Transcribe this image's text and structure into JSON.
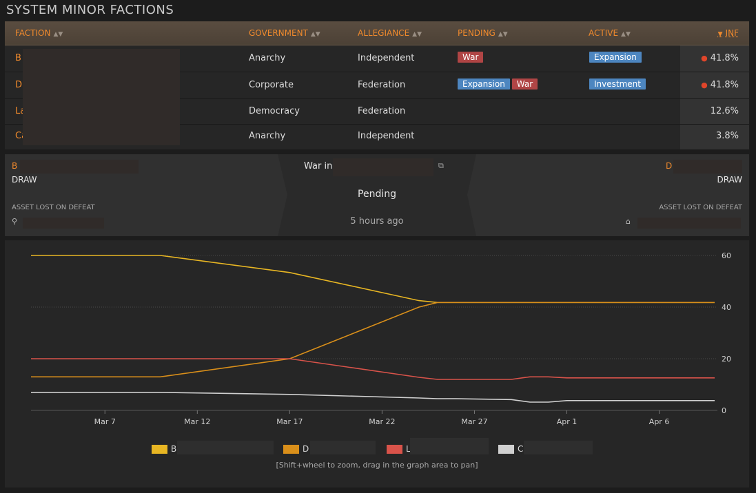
{
  "title": "SYSTEM MINOR FACTIONS",
  "table": {
    "headers": {
      "faction": "FACTION",
      "government": "GOVERNMENT",
      "allegiance": "ALLEGIANCE",
      "pending": "PENDING",
      "active": "ACTIVE",
      "inf": "INF"
    },
    "rows": [
      {
        "name": "B",
        "government": "Anarchy",
        "allegiance": "Independent",
        "pending": [
          "War"
        ],
        "active": [
          "Expansion"
        ],
        "inf": "41.8%"
      },
      {
        "name": "D",
        "government": "Corporate",
        "allegiance": "Federation",
        "pending": [
          "Expansion",
          "War"
        ],
        "active": [
          "Investment"
        ],
        "inf": "41.8%"
      },
      {
        "name": "La",
        "government": "Democracy",
        "allegiance": "Federation",
        "pending": [],
        "active": [],
        "inf": "12.6%"
      },
      {
        "name": "Ca",
        "government": "Anarchy",
        "allegiance": "Independent",
        "pending": [],
        "active": [],
        "inf": "3.8%"
      }
    ]
  },
  "conflict": {
    "left_faction": "B",
    "left_result": "DRAW",
    "left_asset_label": "ASSET LOST ON DEFEAT",
    "war_in": "War in",
    "status": "Pending",
    "time": "5 hours ago",
    "right_faction": "D",
    "right_result": "DRAW",
    "right_asset_label": "ASSET LOST ON DEFEAT"
  },
  "chart_data": {
    "type": "line",
    "x": [
      "Mar 3",
      "Mar 10",
      "Mar 17",
      "Mar 24",
      "Mar 25",
      "Mar 26",
      "Mar 29",
      "Mar 30",
      "Mar 31",
      "Apr 1",
      "Apr 2",
      "Apr 9"
    ],
    "x_ticks": [
      "Mar 7",
      "Mar 12",
      "Mar 17",
      "Mar 22",
      "Mar 27",
      "Apr 1",
      "Apr 6"
    ],
    "y_ticks": [
      "0",
      "20",
      "40",
      "60"
    ],
    "ylim": [
      0,
      60
    ],
    "series": [
      {
        "name": "B",
        "color": "#e8b623",
        "values": [
          60,
          60,
          53.4,
          42.5,
          41.8,
          41.8,
          41.8,
          41.8,
          41.8,
          41.8,
          41.8,
          41.8
        ]
      },
      {
        "name": "D",
        "color": "#d98f1a",
        "values": [
          13,
          13,
          20,
          40,
          41.8,
          41.8,
          41.8,
          41.8,
          41.8,
          41.8,
          41.8,
          41.8
        ]
      },
      {
        "name": "L",
        "color": "#d9534a",
        "values": [
          20,
          20,
          20,
          12.8,
          12,
          12,
          12,
          13,
          13,
          12.6,
          12.6,
          12.6
        ]
      },
      {
        "name": "C",
        "color": "#d0d0d0",
        "values": [
          7,
          7,
          6.2,
          4.8,
          4.5,
          4.5,
          4.2,
          3.2,
          3.2,
          3.8,
          3.8,
          3.8
        ]
      }
    ],
    "legend": [
      {
        "name": "B",
        "color": "#e8b623"
      },
      {
        "name": "D",
        "color": "#d98f1a"
      },
      {
        "name": "L",
        "color": "#d9534a"
      },
      {
        "name": "C",
        "color": "#d0d0d0"
      }
    ],
    "hint": "[Shift+wheel to zoom, drag in the graph area to pan]"
  }
}
